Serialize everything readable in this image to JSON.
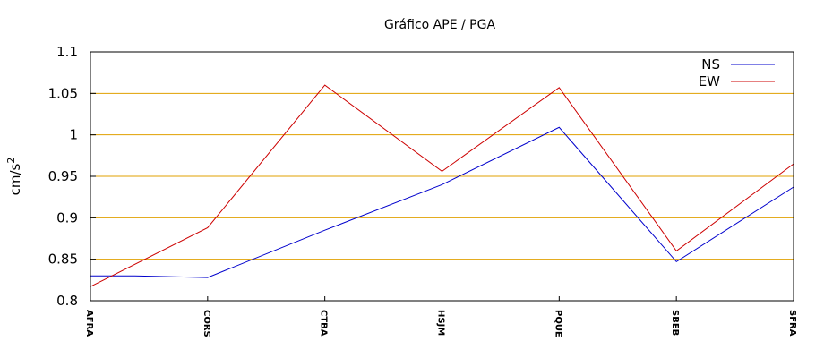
{
  "chart_data": {
    "type": "line",
    "title": "Gráfico  APE / PGA",
    "xlabel": "",
    "ylabel": "cm/s",
    "ylabel_superscript": "2",
    "categories": [
      "AFRA",
      "CORS",
      "CTBA",
      "HSJM",
      "PQUE",
      "SBEB",
      "SFRA"
    ],
    "ylim": [
      0.8,
      1.1
    ],
    "yticks": [
      "0.8",
      "0.85",
      "0.9",
      "0.95",
      "1",
      "1.05",
      "1.1"
    ],
    "grid": "horizontal",
    "grid_color": "#e0a000",
    "legend_position": "top-right",
    "series": [
      {
        "name": "NS",
        "color": "#0000cc",
        "x": [
          0,
          0.38,
          1,
          2,
          3,
          4,
          5,
          6
        ],
        "values": [
          0.83,
          0.83,
          0.828,
          0.885,
          0.94,
          1.009,
          0.847,
          0.937
        ]
      },
      {
        "name": "EW",
        "color": "#cc0000",
        "values": [
          0.817,
          0.888,
          1.06,
          0.956,
          1.057,
          0.86,
          0.965
        ]
      }
    ]
  }
}
